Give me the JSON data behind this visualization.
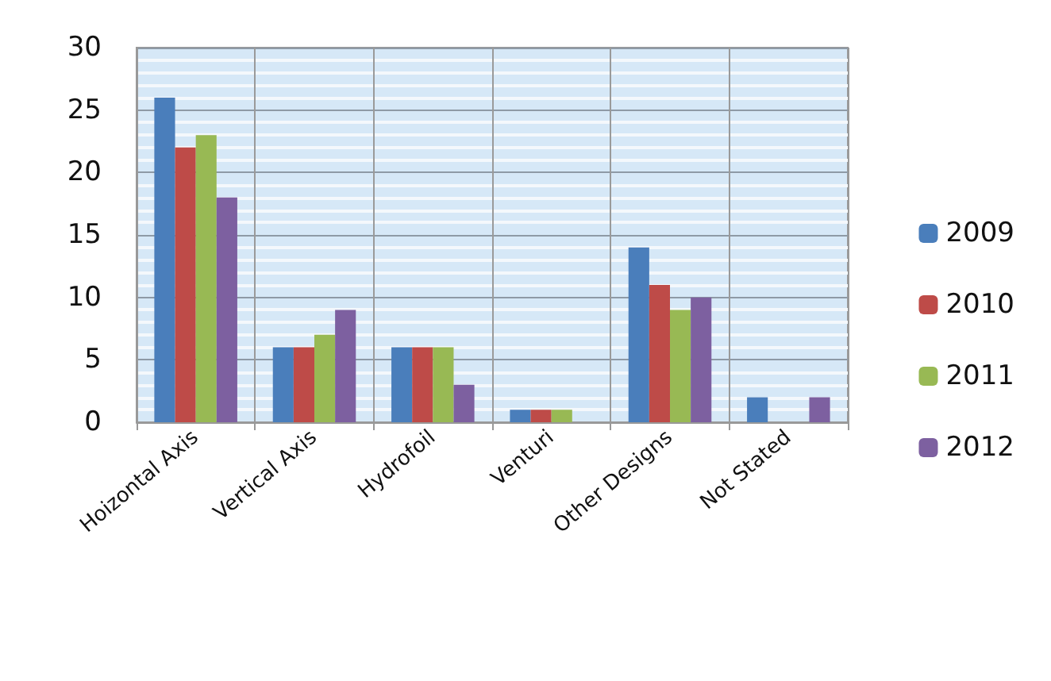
{
  "chart_data": {
    "type": "bar",
    "categories": [
      "Hoizontal Axis",
      "Vertical Axis",
      "Hydrofoil",
      "Venturi",
      "Other Designs",
      "Not Stated"
    ],
    "series": [
      {
        "name": "2009",
        "color": "#4a7ebb",
        "values": [
          26,
          6,
          6,
          1,
          14,
          2
        ]
      },
      {
        "name": "2010",
        "color": "#be4b48",
        "values": [
          22,
          6,
          6,
          1,
          11,
          0
        ]
      },
      {
        "name": "2011",
        "color": "#98b954",
        "values": [
          23,
          7,
          6,
          1,
          9,
          0
        ]
      },
      {
        "name": "2012",
        "color": "#7d60a0",
        "values": [
          18,
          9,
          3,
          0,
          10,
          2
        ]
      }
    ],
    "ylim": [
      0,
      30
    ],
    "yticks": [
      0,
      5,
      10,
      15,
      20,
      25,
      30
    ],
    "grid": true,
    "legend": "right"
  }
}
